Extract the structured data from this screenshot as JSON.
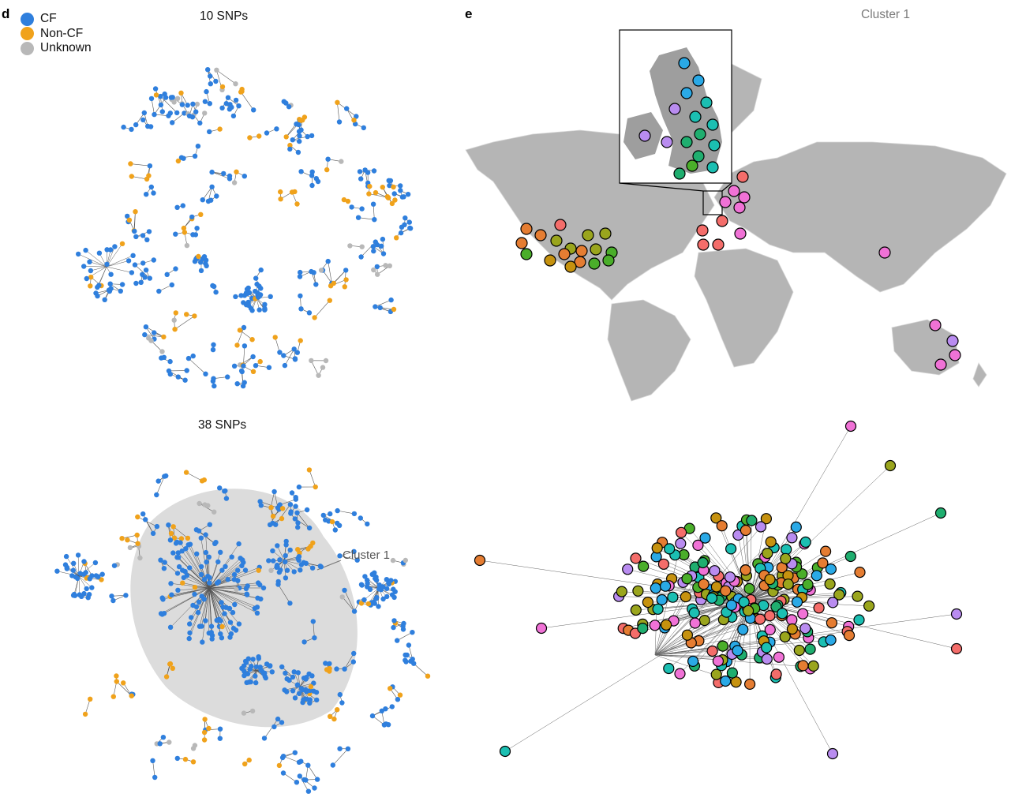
{
  "panels": {
    "d": {
      "letter": "d",
      "legend": [
        {
          "label": "CF",
          "color": "#2f7fdd"
        },
        {
          "label": "Non-CF",
          "color": "#f0a21b"
        },
        {
          "label": "Unknown",
          "color": "#b8b8b8"
        }
      ],
      "networks": [
        {
          "title": "10 SNPs"
        },
        {
          "title": "38 SNPs",
          "highlight_label": "Cluster 1"
        }
      ]
    },
    "e": {
      "letter": "e",
      "title": "Cluster 1"
    }
  },
  "colors": {
    "cf": "#2f7fdd",
    "noncf": "#f0a21b",
    "unknown": "#b8b8b8",
    "land": "#b5b5b5",
    "cluster_highlight": "#dcdcdc",
    "edge": "#555555",
    "site_palette": [
      "#f46d6a",
      "#f072d6",
      "#b98cf0",
      "#2aa9e6",
      "#1bbfb2",
      "#1fae6f",
      "#4aae2a",
      "#9aa51d",
      "#c6920f",
      "#e57d32"
    ]
  }
}
